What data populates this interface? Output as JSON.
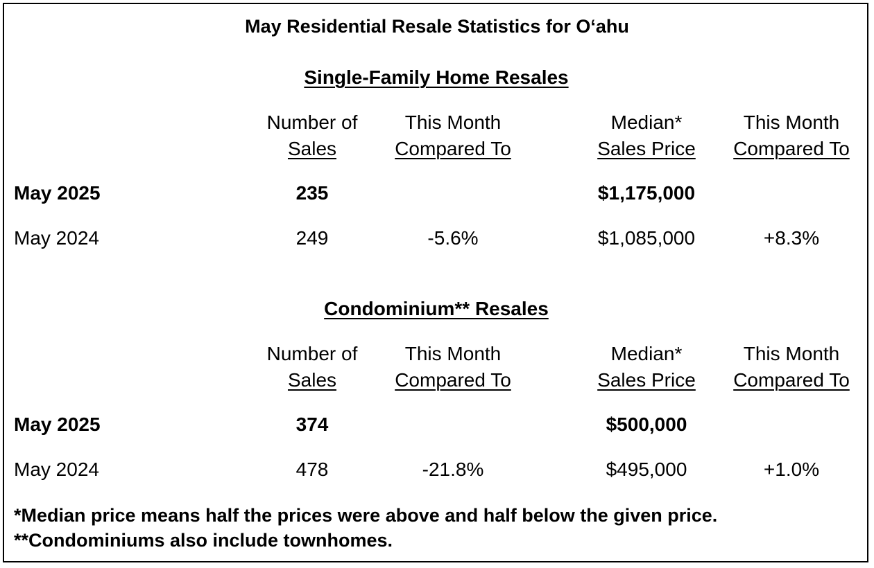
{
  "title": "May Residential Resale Statistics for O‘ahu",
  "sections": [
    {
      "heading": "Single-Family Home Resales",
      "headers": {
        "sales_line1": "Number of",
        "sales_line2": "Sales",
        "cmp1_line1": "This Month",
        "cmp1_line2": "Compared To",
        "price_line1": "Median*",
        "price_line2": "Sales Price",
        "cmp2_line1": "This Month",
        "cmp2_line2": "Compared To"
      },
      "rows": [
        {
          "label": "May 2025",
          "sales": "235",
          "sales_change": "",
          "price": "$1,175,000",
          "price_change": ""
        },
        {
          "label": "May 2024",
          "sales": "249",
          "sales_change": "-5.6%",
          "price": "$1,085,000",
          "price_change": "+8.3%"
        }
      ]
    },
    {
      "heading": "Condominium** Resales",
      "headers": {
        "sales_line1": "Number of",
        "sales_line2": "Sales",
        "cmp1_line1": "This Month",
        "cmp1_line2": "Compared To",
        "price_line1": "Median*",
        "price_line2": "Sales Price",
        "cmp2_line1": "This Month",
        "cmp2_line2": "Compared To"
      },
      "rows": [
        {
          "label": "May 2025",
          "sales": "374",
          "sales_change": "",
          "price": "$500,000",
          "price_change": ""
        },
        {
          "label": "May 2024",
          "sales": "478",
          "sales_change": "-21.8%",
          "price": "$495,000",
          "price_change": "+1.0%"
        }
      ]
    }
  ],
  "footnotes": [
    "*Median price means half the prices were above and half below the given price.",
    "**Condominiums also include townhomes."
  ]
}
